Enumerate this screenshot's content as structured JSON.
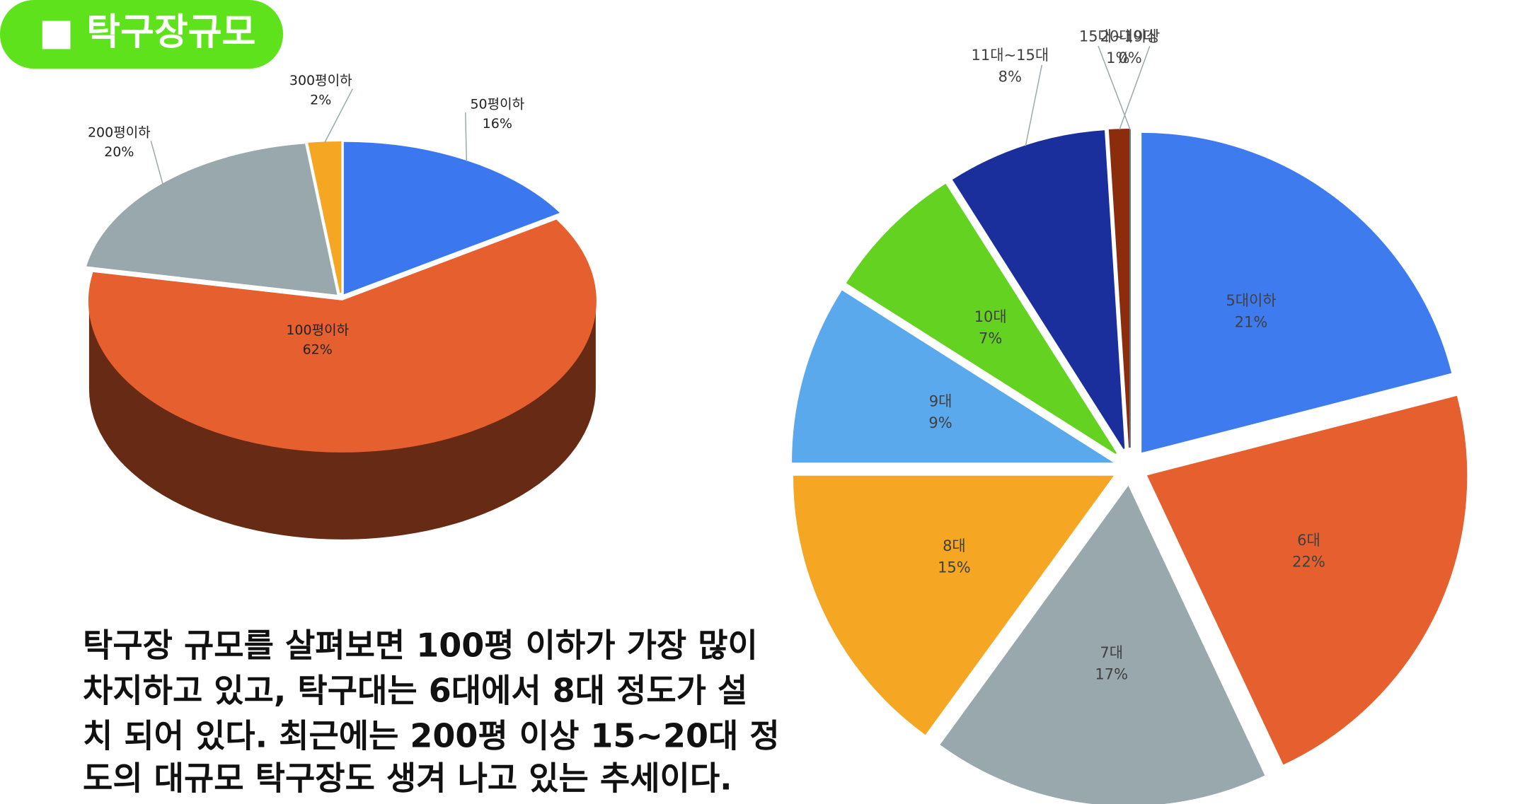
{
  "header": {
    "title": "■ 탁구장규모"
  },
  "description": [
    "탁구장 규모를 살펴보면 100평 이하가 가장 많이",
    "차지하고 있고,  탁구대는 6대에서 8대 정도가 설",
    "치 되어 있다.   최근에는 200평 이상 15~20대 정",
    "도의 대규모 탁구장도 생겨 나고 있는 추세이다."
  ],
  "chart_data": [
    {
      "type": "pie",
      "three_d": true,
      "categories": [
        "50평이하",
        "100평이하",
        "200평이하",
        "300평이하"
      ],
      "values": [
        16,
        62,
        20,
        2
      ],
      "value_labels": [
        "16%",
        "62%",
        "20%",
        "2%"
      ],
      "colors": [
        "#3b78f0",
        "#e5602e",
        "#98a8ad",
        "#f5a623"
      ]
    },
    {
      "type": "pie",
      "three_d": false,
      "categories": [
        "5대이하",
        "6대",
        "7대",
        "8대",
        "9대",
        "10대",
        "11대~15대",
        "15대~19대",
        "20대이상"
      ],
      "values": [
        21,
        22,
        17,
        15,
        9,
        7,
        8,
        1,
        0
      ],
      "value_labels": [
        "21%",
        "22%",
        "17%",
        "15%",
        "9%",
        "7%",
        "8%",
        "1%",
        "0%"
      ],
      "colors": [
        "#3e7bef",
        "#e5602e",
        "#98a8ad",
        "#f5a623",
        "#5aa9ec",
        "#63d220",
        "#1b2f9c",
        "#8b2d0c",
        "#5e7b8c"
      ]
    }
  ]
}
